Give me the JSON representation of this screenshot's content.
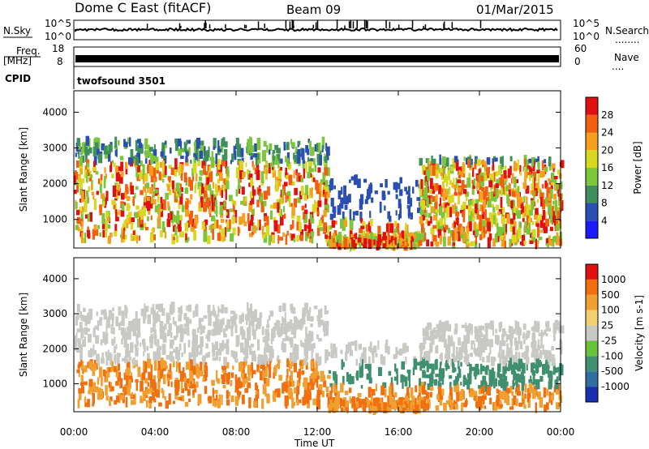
{
  "header": {
    "station": "Dome C East (fitACF)",
    "beam": "Beam 09",
    "date": "01/Mar/2015"
  },
  "status_panels": {
    "nsky_label": "N.Sky",
    "nsearch_label": "N.Search",
    "noise_ticks": [
      "10^5",
      "10^0"
    ],
    "freq_label": "Freq.",
    "freq_unit": "[MHz]",
    "freq_ticks": [
      "18",
      "8"
    ],
    "nave_label": "Nave",
    "nave_ticks": [
      "60",
      "0"
    ],
    "cpid_label": "CPID",
    "cpid_value": "twofsound 3501",
    "legend_dots": "........",
    "nave_dots": "...."
  },
  "x_axis": {
    "label": "Time UT",
    "ticks": [
      "00:00",
      "04:00",
      "08:00",
      "12:00",
      "16:00",
      "20:00",
      "00:00"
    ],
    "range_hours": [
      0,
      24
    ]
  },
  "chart_data": [
    {
      "type": "heatmap",
      "panel": "power",
      "xlabel": "Time UT",
      "ylabel": "Slant Range [km]",
      "ylim": [
        200,
        4600
      ],
      "yticks": [
        "1000",
        "2000",
        "3000",
        "4000"
      ],
      "colorbar_label": "Power [dB]",
      "colorbar_ticks": [
        "4",
        "8",
        "12",
        "16",
        "20",
        "24",
        "28"
      ],
      "colorbar_colors": [
        "#1a1aff",
        "#2b4fb0",
        "#3f8f5a",
        "#7bc63a",
        "#d8d820",
        "#f5a020",
        "#f06010",
        "#e01010"
      ]
    },
    {
      "type": "heatmap",
      "panel": "velocity",
      "xlabel": "Time UT",
      "ylabel": "Slant Range [km]",
      "ylim": [
        200,
        4600
      ],
      "yticks": [
        "1000",
        "2000",
        "3000",
        "4000"
      ],
      "colorbar_label": "Velocity [m s-1]",
      "colorbar_ticks": [
        "1000",
        "500",
        "100",
        "25",
        "-25",
        "-100",
        "-500",
        "-1000"
      ],
      "colorbar_colors": [
        "#1a2fb0",
        "#2e6fa0",
        "#3f8f70",
        "#66c33a",
        "#c8c8c4",
        "#f2d070",
        "#f0a030",
        "#f07010",
        "#e01010"
      ]
    }
  ]
}
